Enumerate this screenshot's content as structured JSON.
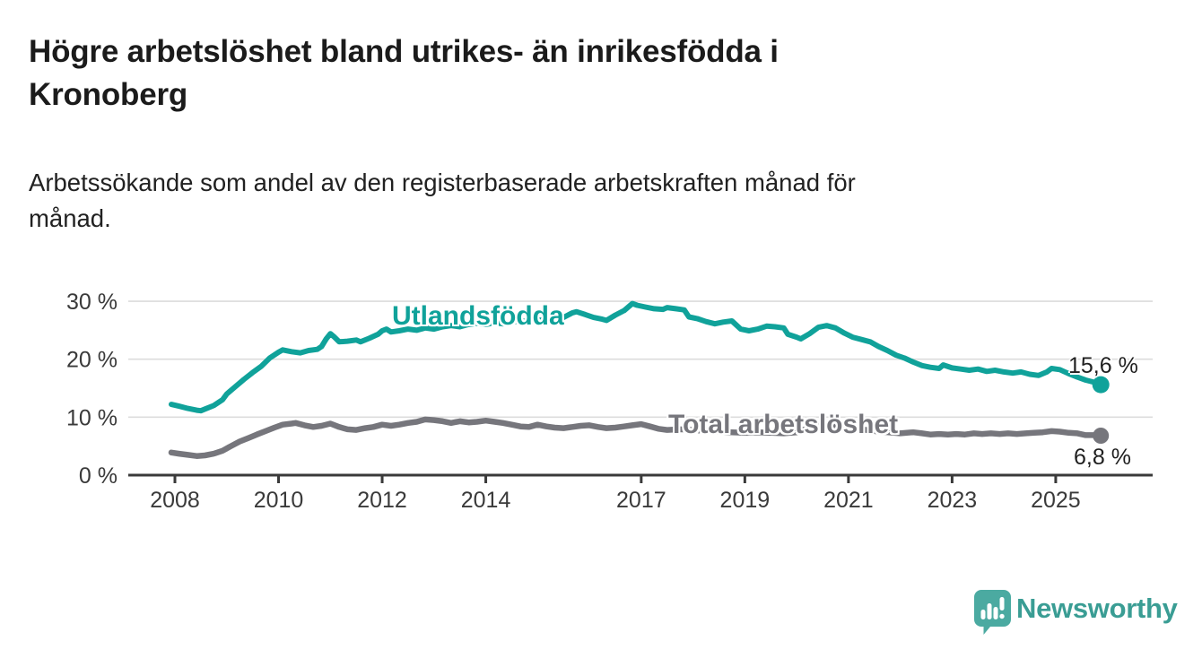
{
  "header": {
    "title_lines": [
      "Högre arbetslöshet bland utrikes- än inrikesfödda i",
      "Kronoberg"
    ],
    "subtitle_lines": [
      "Arbetssökande som andel av den registerbaserade arbetskraften månad för",
      "månad."
    ]
  },
  "chart_data": {
    "type": "line",
    "title": "Högre arbetslöshet bland utrikes- än inrikesfödda i Kronoberg",
    "subtitle": "Arbetssökande som andel av den registerbaserade arbetskraften månad för månad.",
    "unit": "%",
    "xlabel": "",
    "ylabel": "",
    "x_ticks": [
      2008,
      2010,
      2012,
      2014,
      2017,
      2019,
      2021,
      2023,
      2025
    ],
    "y_ticks": [
      0,
      10,
      20,
      30
    ],
    "y_tick_suffix": " %",
    "xlim": [
      2007.1,
      2026.9
    ],
    "ylim": [
      0,
      33
    ],
    "grid": "horizontal",
    "axis_color": "#3a3a3a",
    "gridline_color": "#dcdcdc",
    "series": [
      {
        "name": "Utlandsfödda",
        "color": "#10a29a",
        "end_label": "15,6 %",
        "end_value": 15.6,
        "points": [
          [
            2007.93,
            12.2
          ],
          [
            2008.08,
            11.9
          ],
          [
            2008.25,
            11.5
          ],
          [
            2008.42,
            11.2
          ],
          [
            2008.5,
            11.1
          ],
          [
            2008.58,
            11.4
          ],
          [
            2008.75,
            12.0
          ],
          [
            2008.92,
            13.0
          ],
          [
            2009.0,
            14.0
          ],
          [
            2009.17,
            15.3
          ],
          [
            2009.33,
            16.5
          ],
          [
            2009.5,
            17.7
          ],
          [
            2009.67,
            18.8
          ],
          [
            2009.83,
            20.2
          ],
          [
            2010.0,
            21.2
          ],
          [
            2010.08,
            21.6
          ],
          [
            2010.25,
            21.3
          ],
          [
            2010.42,
            21.1
          ],
          [
            2010.58,
            21.5
          ],
          [
            2010.75,
            21.7
          ],
          [
            2010.83,
            22.2
          ],
          [
            2010.92,
            23.5
          ],
          [
            2011.0,
            24.4
          ],
          [
            2011.08,
            23.8
          ],
          [
            2011.17,
            23.0
          ],
          [
            2011.33,
            23.1
          ],
          [
            2011.5,
            23.3
          ],
          [
            2011.58,
            23.0
          ],
          [
            2011.75,
            23.6
          ],
          [
            2011.92,
            24.3
          ],
          [
            2012.0,
            24.9
          ],
          [
            2012.08,
            25.2
          ],
          [
            2012.17,
            24.7
          ],
          [
            2012.33,
            24.9
          ],
          [
            2012.5,
            25.2
          ],
          [
            2012.67,
            25.0
          ],
          [
            2012.83,
            25.4
          ],
          [
            2013.0,
            25.2
          ],
          [
            2013.17,
            25.6
          ],
          [
            2013.33,
            25.8
          ],
          [
            2013.5,
            25.6
          ],
          [
            2013.67,
            26.0
          ],
          [
            2013.83,
            26.2
          ],
          [
            2014.0,
            26.0
          ],
          [
            2014.17,
            26.3
          ],
          [
            2014.33,
            26.1
          ],
          [
            2014.5,
            26.4
          ],
          [
            2014.67,
            26.6
          ],
          [
            2014.83,
            26.5
          ],
          [
            2015.0,
            26.8
          ],
          [
            2015.17,
            26.6
          ],
          [
            2015.33,
            26.9
          ],
          [
            2015.5,
            27.2
          ],
          [
            2015.67,
            28.0
          ],
          [
            2015.75,
            28.2
          ],
          [
            2015.92,
            27.7
          ],
          [
            2016.08,
            27.2
          ],
          [
            2016.25,
            26.9
          ],
          [
            2016.33,
            26.7
          ],
          [
            2016.5,
            27.6
          ],
          [
            2016.67,
            28.4
          ],
          [
            2016.83,
            29.6
          ],
          [
            2016.92,
            29.3
          ],
          [
            2017.08,
            29.0
          ],
          [
            2017.25,
            28.7
          ],
          [
            2017.42,
            28.6
          ],
          [
            2017.5,
            28.9
          ],
          [
            2017.67,
            28.7
          ],
          [
            2017.83,
            28.5
          ],
          [
            2017.92,
            27.3
          ],
          [
            2018.08,
            27.0
          ],
          [
            2018.25,
            26.5
          ],
          [
            2018.42,
            26.1
          ],
          [
            2018.58,
            26.4
          ],
          [
            2018.75,
            26.6
          ],
          [
            2018.92,
            25.2
          ],
          [
            2019.08,
            24.9
          ],
          [
            2019.25,
            25.2
          ],
          [
            2019.42,
            25.7
          ],
          [
            2019.58,
            25.6
          ],
          [
            2019.75,
            25.4
          ],
          [
            2019.83,
            24.3
          ],
          [
            2020.0,
            23.8
          ],
          [
            2020.08,
            23.5
          ],
          [
            2020.25,
            24.4
          ],
          [
            2020.42,
            25.5
          ],
          [
            2020.58,
            25.8
          ],
          [
            2020.75,
            25.4
          ],
          [
            2020.92,
            24.5
          ],
          [
            2021.08,
            23.8
          ],
          [
            2021.25,
            23.4
          ],
          [
            2021.42,
            23.0
          ],
          [
            2021.58,
            22.2
          ],
          [
            2021.75,
            21.5
          ],
          [
            2021.92,
            20.7
          ],
          [
            2022.08,
            20.2
          ],
          [
            2022.25,
            19.5
          ],
          [
            2022.42,
            18.9
          ],
          [
            2022.58,
            18.6
          ],
          [
            2022.75,
            18.4
          ],
          [
            2022.83,
            19.0
          ],
          [
            2023.0,
            18.5
          ],
          [
            2023.17,
            18.3
          ],
          [
            2023.33,
            18.1
          ],
          [
            2023.5,
            18.3
          ],
          [
            2023.67,
            17.9
          ],
          [
            2023.83,
            18.1
          ],
          [
            2024.0,
            17.8
          ],
          [
            2024.17,
            17.6
          ],
          [
            2024.33,
            17.8
          ],
          [
            2024.5,
            17.4
          ],
          [
            2024.67,
            17.2
          ],
          [
            2024.83,
            17.8
          ],
          [
            2024.92,
            18.4
          ],
          [
            2025.08,
            18.2
          ],
          [
            2025.25,
            17.5
          ],
          [
            2025.42,
            16.9
          ],
          [
            2025.58,
            16.4
          ],
          [
            2025.75,
            16.0
          ],
          [
            2025.87,
            15.6
          ]
        ]
      },
      {
        "name": "Total arbetslöshet",
        "color": "#76767c",
        "end_label": "6,8 %",
        "end_value": 6.8,
        "points": [
          [
            2007.93,
            3.9
          ],
          [
            2008.08,
            3.7
          ],
          [
            2008.25,
            3.5
          ],
          [
            2008.42,
            3.3
          ],
          [
            2008.58,
            3.4
          ],
          [
            2008.75,
            3.7
          ],
          [
            2008.92,
            4.2
          ],
          [
            2009.08,
            5.0
          ],
          [
            2009.25,
            5.8
          ],
          [
            2009.42,
            6.4
          ],
          [
            2009.58,
            7.0
          ],
          [
            2009.75,
            7.6
          ],
          [
            2009.92,
            8.2
          ],
          [
            2010.08,
            8.7
          ],
          [
            2010.25,
            8.9
          ],
          [
            2010.33,
            9.0
          ],
          [
            2010.5,
            8.6
          ],
          [
            2010.67,
            8.3
          ],
          [
            2010.83,
            8.5
          ],
          [
            2011.0,
            8.9
          ],
          [
            2011.17,
            8.3
          ],
          [
            2011.33,
            7.9
          ],
          [
            2011.5,
            7.8
          ],
          [
            2011.67,
            8.1
          ],
          [
            2011.83,
            8.3
          ],
          [
            2012.0,
            8.7
          ],
          [
            2012.17,
            8.5
          ],
          [
            2012.33,
            8.7
          ],
          [
            2012.5,
            9.0
          ],
          [
            2012.67,
            9.2
          ],
          [
            2012.83,
            9.6
          ],
          [
            2013.0,
            9.5
          ],
          [
            2013.17,
            9.3
          ],
          [
            2013.33,
            9.0
          ],
          [
            2013.5,
            9.3
          ],
          [
            2013.67,
            9.1
          ],
          [
            2013.83,
            9.2
          ],
          [
            2014.0,
            9.4
          ],
          [
            2014.17,
            9.2
          ],
          [
            2014.33,
            9.0
          ],
          [
            2014.5,
            8.7
          ],
          [
            2014.67,
            8.4
          ],
          [
            2014.83,
            8.3
          ],
          [
            2015.0,
            8.7
          ],
          [
            2015.17,
            8.4
          ],
          [
            2015.33,
            8.2
          ],
          [
            2015.5,
            8.1
          ],
          [
            2015.67,
            8.3
          ],
          [
            2015.83,
            8.5
          ],
          [
            2016.0,
            8.6
          ],
          [
            2016.17,
            8.3
          ],
          [
            2016.33,
            8.1
          ],
          [
            2016.5,
            8.2
          ],
          [
            2016.67,
            8.4
          ],
          [
            2016.83,
            8.6
          ],
          [
            2017.0,
            8.8
          ],
          [
            2017.17,
            8.4
          ],
          [
            2017.33,
            8.0
          ],
          [
            2017.5,
            7.8
          ],
          [
            2017.75,
            7.9
          ],
          [
            2018.0,
            7.8
          ],
          [
            2018.25,
            7.6
          ],
          [
            2018.5,
            7.5
          ],
          [
            2018.75,
            7.4
          ],
          [
            2019.0,
            7.3
          ],
          [
            2019.25,
            7.4
          ],
          [
            2019.5,
            7.3
          ],
          [
            2019.75,
            7.2
          ],
          [
            2020.0,
            7.4
          ],
          [
            2020.25,
            8.2
          ],
          [
            2020.5,
            8.6
          ],
          [
            2020.75,
            8.4
          ],
          [
            2021.0,
            8.1
          ],
          [
            2021.25,
            7.9
          ],
          [
            2021.5,
            7.6
          ],
          [
            2021.75,
            7.4
          ],
          [
            2022.0,
            7.2
          ],
          [
            2022.25,
            7.4
          ],
          [
            2022.42,
            7.2
          ],
          [
            2022.58,
            7.0
          ],
          [
            2022.75,
            7.1
          ],
          [
            2022.92,
            7.0
          ],
          [
            2023.08,
            7.1
          ],
          [
            2023.25,
            7.0
          ],
          [
            2023.42,
            7.2
          ],
          [
            2023.58,
            7.1
          ],
          [
            2023.75,
            7.2
          ],
          [
            2023.92,
            7.1
          ],
          [
            2024.08,
            7.2
          ],
          [
            2024.25,
            7.1
          ],
          [
            2024.42,
            7.2
          ],
          [
            2024.58,
            7.3
          ],
          [
            2024.75,
            7.4
          ],
          [
            2024.92,
            7.6
          ],
          [
            2025.08,
            7.5
          ],
          [
            2025.25,
            7.3
          ],
          [
            2025.42,
            7.2
          ],
          [
            2025.58,
            6.9
          ],
          [
            2025.75,
            6.9
          ],
          [
            2025.87,
            6.8
          ]
        ]
      }
    ]
  },
  "footer": {
    "brand": "Newsworthy",
    "brand_color": "#3a9d94",
    "logo_icon": "speech-bubble-bar-chart",
    "logo_icon_color": "#4baaa1"
  }
}
